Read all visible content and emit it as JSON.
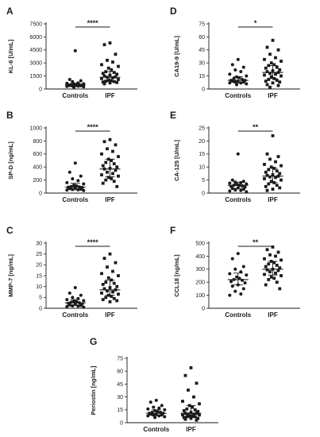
{
  "figure": {
    "colors": {
      "ink": "#1a1a1a",
      "background": "#ffffff"
    },
    "marker_shapes": {
      "Controls": "circle",
      "IPF": "square"
    }
  },
  "chart_data": [
    {
      "panel": "A",
      "type": "scatter",
      "ylabel": "KL-6 [U/mL]",
      "ylim": [
        0,
        7500
      ],
      "yticks": [
        "0",
        "1500",
        "3000",
        "4500",
        "6000",
        "7500"
      ],
      "yticks_values": [
        0,
        1500,
        3000,
        4500,
        6000,
        7500
      ],
      "categories": [
        "Controls",
        "IPF"
      ],
      "significance": "****",
      "series": [
        {
          "name": "Controls",
          "median": 450,
          "iqr": [
            300,
            650
          ],
          "values": [
            4400,
            1100,
            950,
            850,
            700,
            650,
            600,
            580,
            540,
            500,
            480,
            460,
            440,
            420,
            400,
            380,
            350,
            320,
            300,
            250,
            200
          ]
        },
        {
          "name": "IPF",
          "median": 1350,
          "iqr": [
            900,
            2000
          ],
          "values": [
            5300,
            5100,
            4000,
            3300,
            3100,
            2800,
            2600,
            2400,
            2200,
            2000,
            1900,
            1800,
            1700,
            1600,
            1500,
            1400,
            1350,
            1300,
            1200,
            1100,
            1000,
            950,
            900,
            850,
            800,
            750,
            700,
            600
          ]
        }
      ]
    },
    {
      "panel": "B",
      "type": "scatter",
      "ylabel": "SP-D [ng/mL]",
      "ylim": [
        0,
        1000
      ],
      "yticks": [
        "0",
        "200",
        "400",
        "600",
        "800",
        "1000"
      ],
      "yticks_values": [
        0,
        200,
        400,
        600,
        800,
        1000
      ],
      "categories": [
        "Controls",
        "IPF"
      ],
      "significance": "****",
      "series": [
        {
          "name": "Controls",
          "median": 90,
          "iqr": [
            50,
            150
          ],
          "values": [
            460,
            320,
            260,
            220,
            190,
            160,
            140,
            120,
            110,
            100,
            95,
            90,
            85,
            80,
            70,
            60,
            55,
            50,
            45,
            40
          ]
        },
        {
          "name": "IPF",
          "median": 370,
          "iqr": [
            250,
            520
          ],
          "values": [
            820,
            790,
            740,
            680,
            640,
            600,
            560,
            520,
            500,
            470,
            450,
            420,
            400,
            380,
            370,
            350,
            320,
            300,
            280,
            260,
            240,
            220,
            200,
            180,
            150,
            100
          ]
        }
      ]
    },
    {
      "panel": "C",
      "type": "scatter",
      "ylabel": "MMP-7 [ng/mL]",
      "ylim": [
        0,
        30
      ],
      "yticks": [
        "0",
        "5",
        "10",
        "15",
        "20",
        "25",
        "30"
      ],
      "yticks_values": [
        0,
        5,
        10,
        15,
        20,
        25,
        30
      ],
      "categories": [
        "Controls",
        "IPF"
      ],
      "significance": "****",
      "series": [
        {
          "name": "Controls",
          "median": 2.5,
          "iqr": [
            1.5,
            4
          ],
          "values": [
            9.5,
            7,
            6,
            5,
            4.5,
            4,
            3.5,
            3.2,
            3,
            2.8,
            2.5,
            2.3,
            2,
            1.8,
            1.5,
            1.3,
            1.1,
            1,
            0.8,
            0.5
          ]
        },
        {
          "name": "IPF",
          "median": 8.5,
          "iqr": [
            6,
            13
          ],
          "values": [
            25,
            23,
            21,
            19,
            17,
            16,
            15,
            14,
            13,
            12,
            11.5,
            11,
            10,
            9.5,
            9,
            8.5,
            8,
            7.5,
            7,
            6.5,
            6,
            5.5,
            5,
            4.5,
            4,
            3.5,
            3
          ]
        }
      ]
    },
    {
      "panel": "D",
      "type": "scatter",
      "ylabel": "CA19-9 [U/mL]",
      "ylim": [
        0,
        75
      ],
      "yticks": [
        "0",
        "15",
        "30",
        "45",
        "60",
        "75"
      ],
      "yticks_values": [
        0,
        15,
        30,
        45,
        60,
        75
      ],
      "categories": [
        "Controls",
        "IPF"
      ],
      "significance": "*",
      "series": [
        {
          "name": "Controls",
          "median": 10,
          "iqr": [
            7,
            14
          ],
          "values": [
            34,
            28,
            25,
            22,
            20,
            17,
            15,
            14,
            13,
            12,
            11,
            10,
            10,
            9,
            9,
            8,
            8,
            7,
            7,
            6,
            5
          ]
        },
        {
          "name": "IPF",
          "median": 19,
          "iqr": [
            12,
            27
          ],
          "values": [
            56,
            48,
            45,
            40,
            36,
            34,
            32,
            30,
            28,
            27,
            25,
            24,
            22,
            21,
            20,
            19,
            18,
            17,
            16,
            15,
            14,
            12,
            11,
            10,
            9,
            8,
            7,
            5,
            4,
            2
          ]
        }
      ]
    },
    {
      "panel": "E",
      "type": "scatter",
      "ylabel": "CA-125 [U/mL]",
      "ylim": [
        0,
        25
      ],
      "yticks": [
        "0",
        "5",
        "10",
        "15",
        "20",
        "25"
      ],
      "yticks_values": [
        0,
        5,
        10,
        15,
        20,
        25
      ],
      "categories": [
        "Controls",
        "IPF"
      ],
      "significance": "**",
      "series": [
        {
          "name": "Controls",
          "median": 3,
          "iqr": [
            1.8,
            4.2
          ],
          "values": [
            15,
            5,
            4.5,
            4.2,
            4,
            3.8,
            3.5,
            3.3,
            3,
            3,
            2.8,
            2.5,
            2.3,
            2,
            1.8,
            1.5,
            1.2,
            1,
            0.8,
            0.5
          ]
        },
        {
          "name": "IPF",
          "median": 6.5,
          "iqr": [
            4,
            9.5
          ],
          "values": [
            22,
            15,
            14,
            13,
            12,
            11,
            10.5,
            10,
            9.5,
            9,
            8.5,
            8,
            7.5,
            7,
            6.8,
            6.5,
            6.2,
            6,
            5.5,
            5,
            4.5,
            4,
            3.5,
            3,
            2.5,
            2,
            1.5,
            1
          ]
        }
      ]
    },
    {
      "panel": "F",
      "type": "scatter",
      "ylabel": "CCL18 [ng/mL]",
      "ylim": [
        0,
        500
      ],
      "yticks": [
        "0",
        "100",
        "200",
        "300",
        "400",
        "500"
      ],
      "yticks_values": [
        0,
        100,
        200,
        300,
        400,
        500
      ],
      "categories": [
        "Controls",
        "IPF"
      ],
      "significance": "**",
      "series": [
        {
          "name": "Controls",
          "median": 220,
          "iqr": [
            180,
            270
          ],
          "values": [
            420,
            380,
            320,
            300,
            280,
            265,
            255,
            240,
            230,
            220,
            215,
            205,
            195,
            180,
            170,
            150,
            130,
            110,
            100
          ]
        },
        {
          "name": "IPF",
          "median": 300,
          "iqr": [
            255,
            360
          ],
          "values": [
            470,
            450,
            430,
            410,
            400,
            380,
            370,
            360,
            350,
            340,
            330,
            320,
            310,
            300,
            295,
            290,
            280,
            270,
            260,
            250,
            240,
            230,
            220,
            200,
            180,
            150
          ]
        }
      ]
    },
    {
      "panel": "G",
      "type": "scatter",
      "ylabel": "Periostin [ng/mL]",
      "ylim": [
        0,
        75
      ],
      "yticks": [
        "0",
        "15",
        "30",
        "45",
        "60",
        "75"
      ],
      "yticks_values": [
        0,
        15,
        30,
        45,
        60,
        75
      ],
      "categories": [
        "Controls",
        "IPF"
      ],
      "significance": "",
      "series": [
        {
          "name": "Controls",
          "median": 11,
          "iqr": [
            8,
            15
          ],
          "values": [
            26,
            24,
            20,
            18,
            17,
            16,
            15,
            14,
            13,
            12,
            12,
            11,
            11,
            10,
            10,
            9,
            9,
            8,
            8,
            7,
            6
          ]
        },
        {
          "name": "IPF",
          "median": 11,
          "iqr": [
            6,
            20
          ],
          "values": [
            64,
            55,
            46,
            38,
            30,
            25,
            22,
            20,
            18,
            16,
            15,
            14,
            13,
            12,
            11,
            11,
            10,
            10,
            9,
            9,
            8,
            8,
            7,
            7,
            6,
            5,
            5,
            4,
            3
          ]
        }
      ]
    }
  ]
}
